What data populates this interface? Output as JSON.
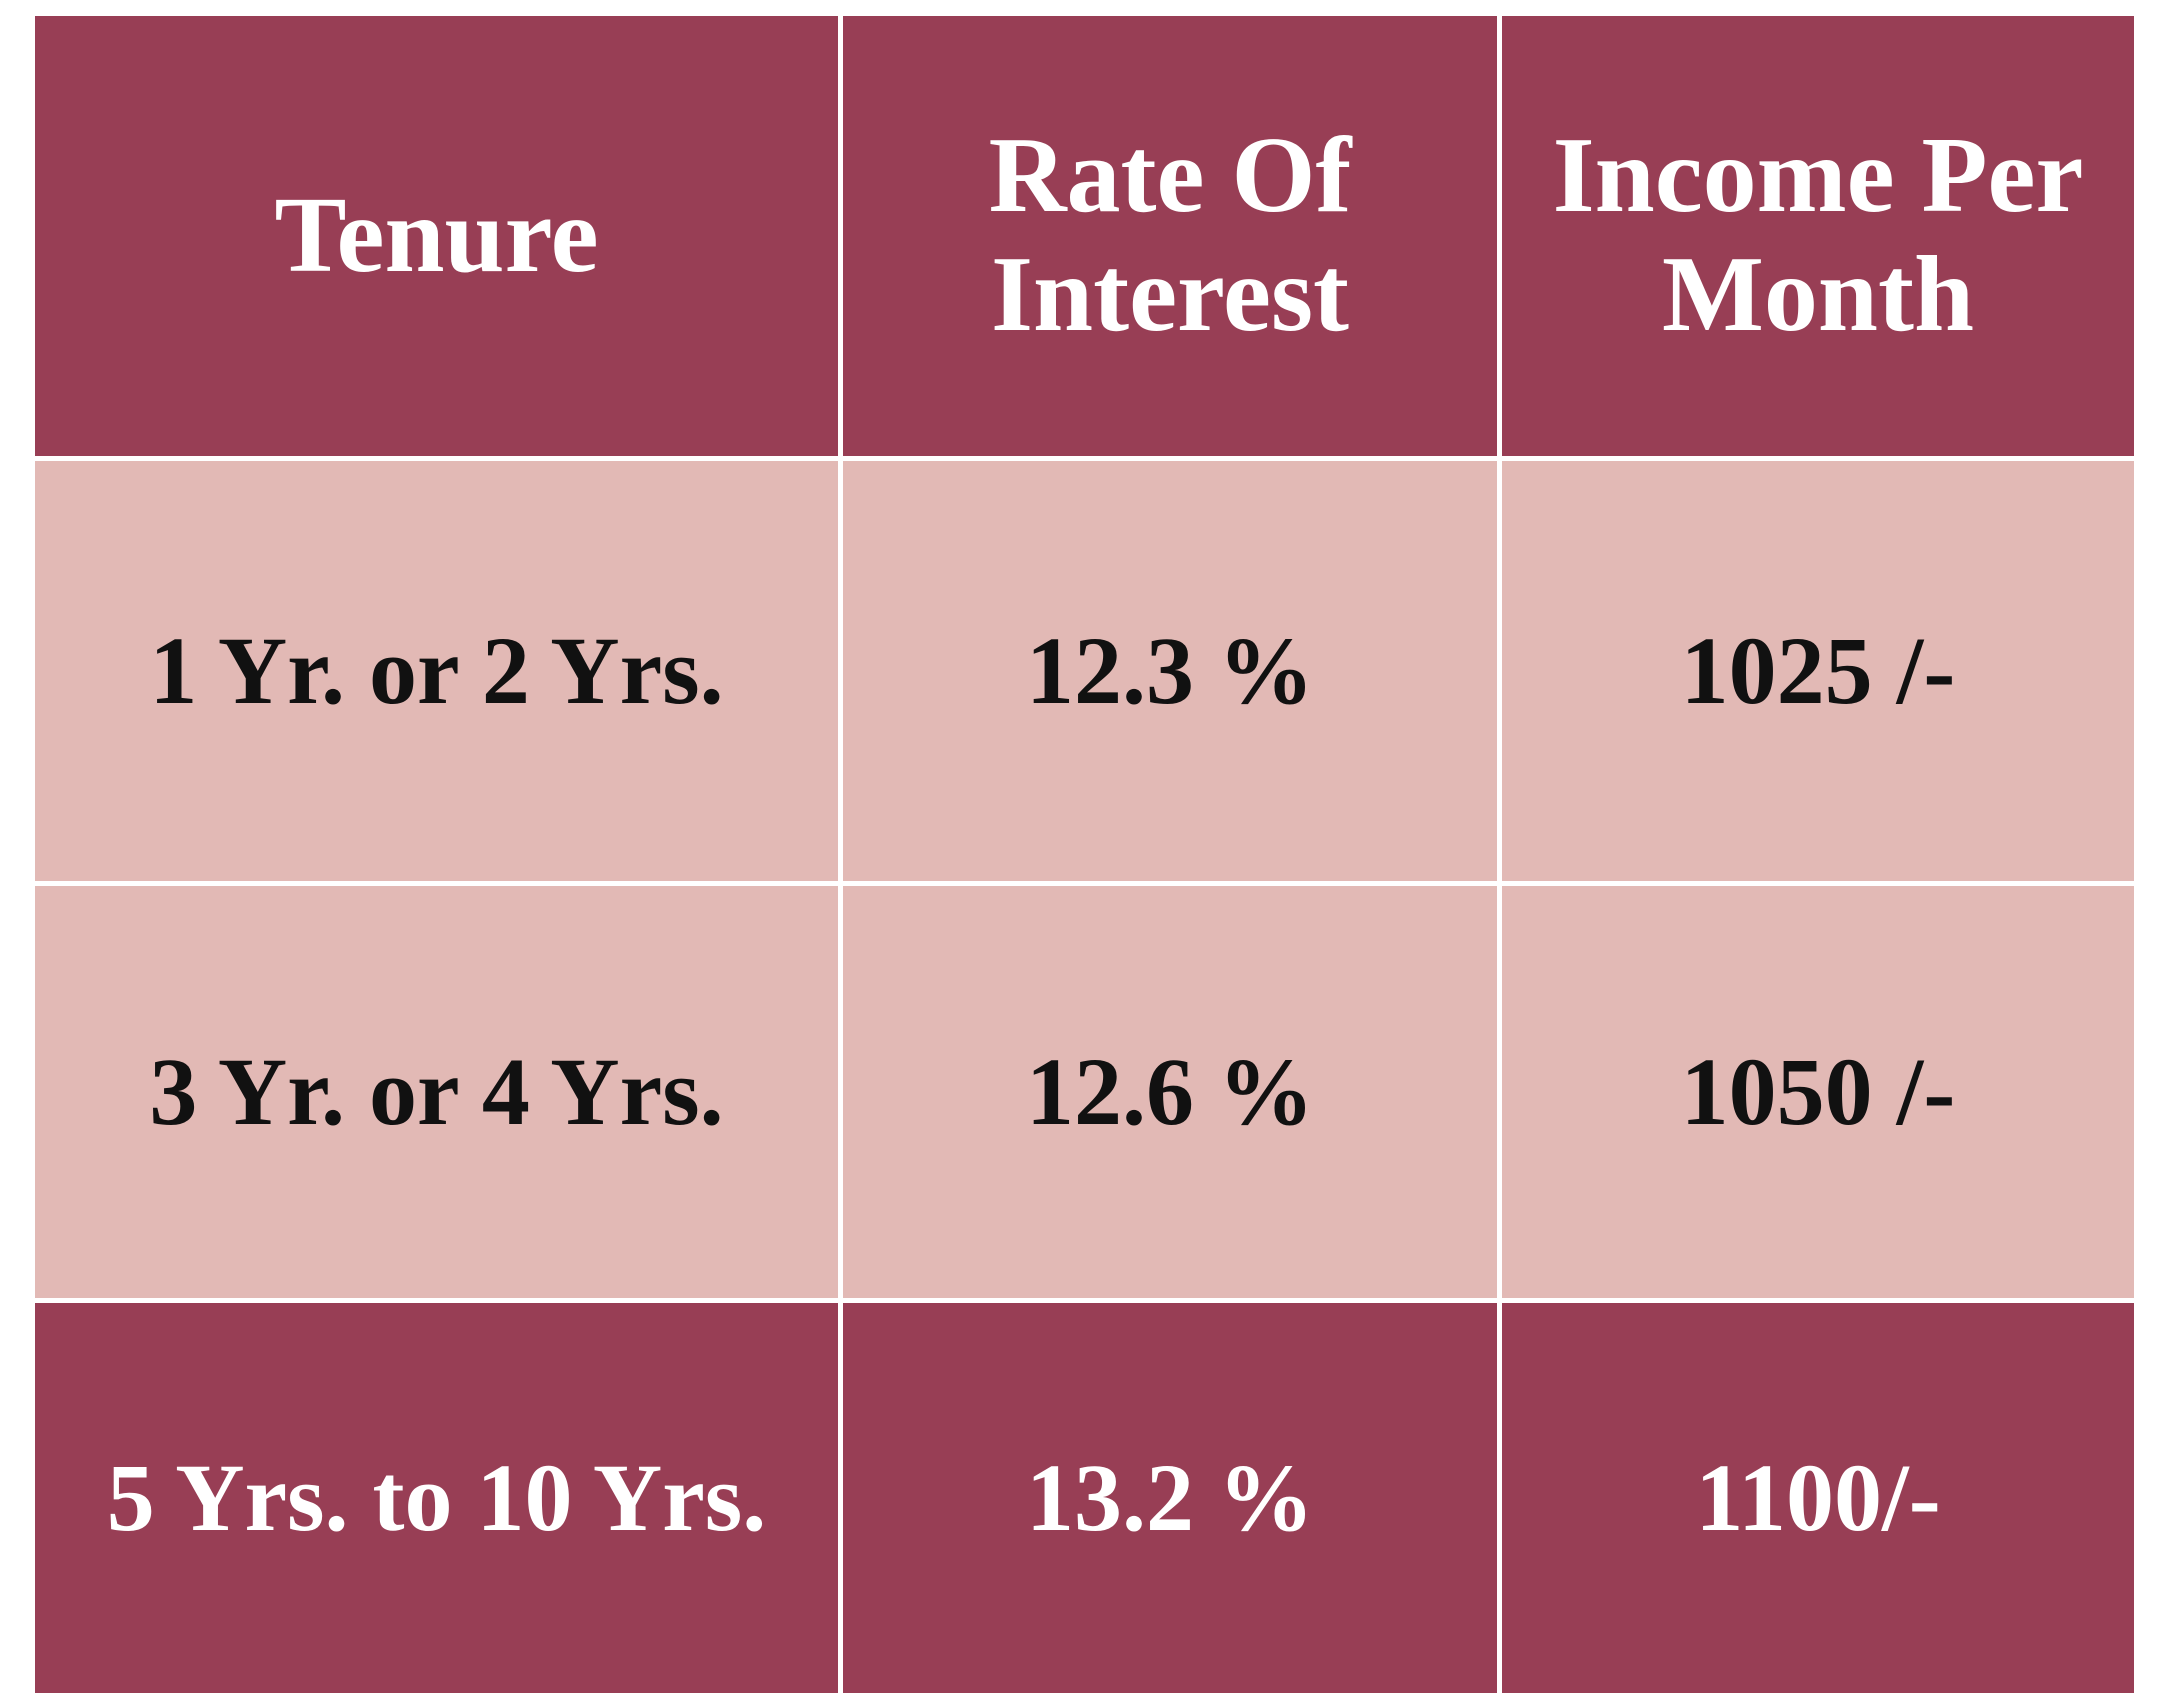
{
  "table": {
    "header": [
      "Tenure",
      "Rate Of Interest",
      "Income Per Month"
    ],
    "rows": [
      [
        "1 Yr. or 2 Yrs.",
        "12.3 %",
        "1025 /-"
      ],
      [
        "3 Yr. or 4 Yrs.",
        "12.6 %",
        "1050 /-"
      ],
      [
        "5 Yrs. to 10 Yrs.",
        "13.2 %",
        "1100/-"
      ]
    ]
  }
}
